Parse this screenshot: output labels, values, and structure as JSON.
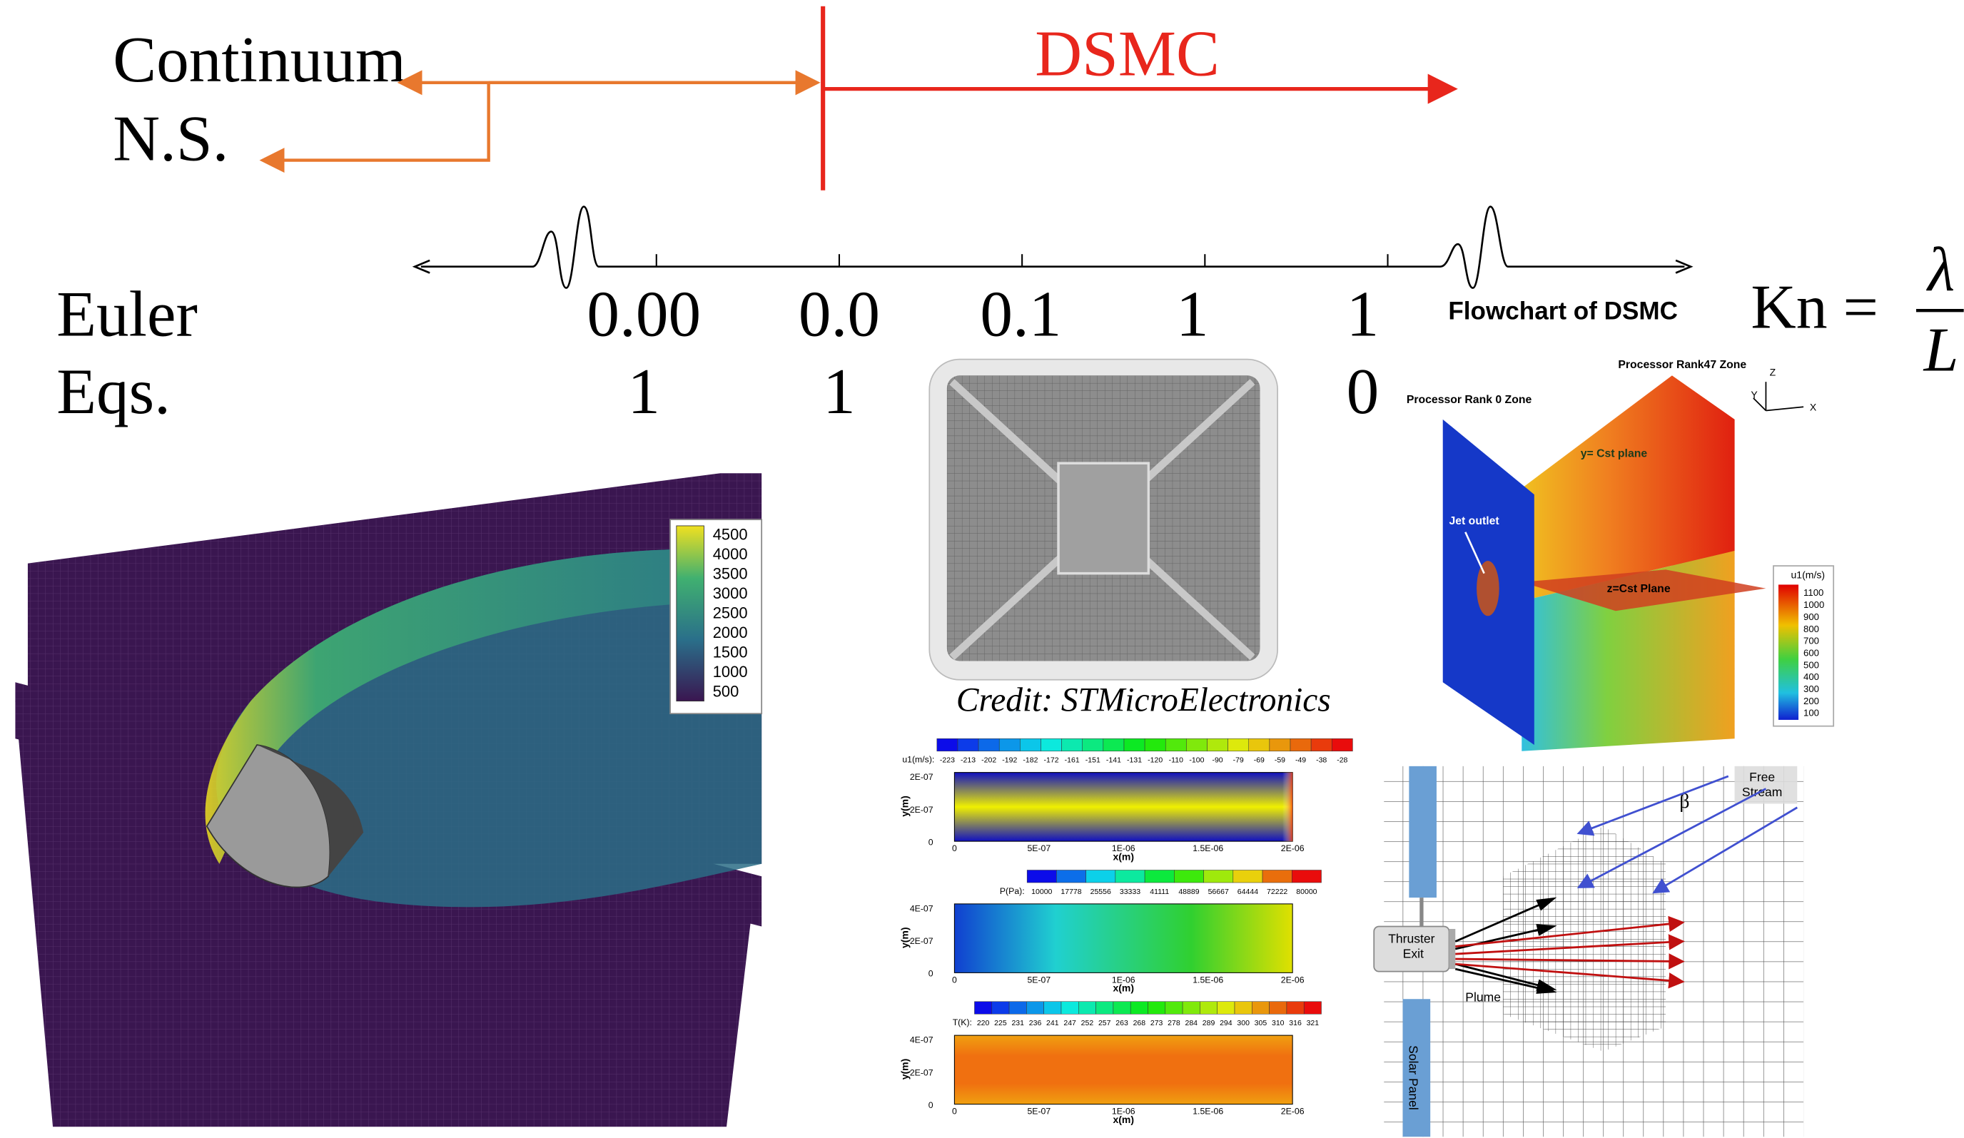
{
  "regime": {
    "continuum": "Continuum",
    "ns": "N.S.",
    "dsmc": "DSMC",
    "euler": "Euler",
    "eqs": "Eqs."
  },
  "kn_axis": {
    "ticks": [
      [
        "0.00",
        "1"
      ],
      [
        "0.0",
        "1"
      ],
      [
        "0.1"
      ],
      [
        "1"
      ],
      [
        "1",
        "0"
      ]
    ],
    "flowchart": "Flowchart of DSMC",
    "kn": "Kn =",
    "lambda": "λ",
    "L": "L"
  },
  "figures": {
    "reentry": {
      "colorbar": [
        "4500",
        "4000",
        "3500",
        "3000",
        "2500",
        "2000",
        "1500",
        "1000",
        "500"
      ]
    },
    "chip": {
      "credit": "Credit: STMicroElectronics"
    },
    "channel": {
      "panels": [
        {
          "var": "u1(m/s):",
          "levels": [
            "-223",
            "-213",
            "-202",
            "-192",
            "-182",
            "-172",
            "-161",
            "-151",
            "-141",
            "-131",
            "-120",
            "-110",
            "-100",
            "-90",
            "-79",
            "-69",
            "-59",
            "-49",
            "-38",
            "-28"
          ],
          "yticks": [
            "2E-07",
            "2E-07",
            "0"
          ]
        },
        {
          "var": "P(Pa):",
          "levels": [
            "10000",
            "17778",
            "25556",
            "33333",
            "41111",
            "48889",
            "56667",
            "64444",
            "72222",
            "80000"
          ],
          "yticks": [
            "4E-07",
            "2E-07",
            "0"
          ]
        },
        {
          "var": "T(K):",
          "levels": [
            "220",
            "225",
            "231",
            "236",
            "241",
            "247",
            "252",
            "257",
            "263",
            "268",
            "273",
            "278",
            "284",
            "289",
            "294",
            "300",
            "305",
            "310",
            "316",
            "321"
          ],
          "yticks": [
            "4E-07",
            "2E-07",
            "0"
          ]
        }
      ],
      "xticks": [
        "0",
        "5E-07",
        "1E-06",
        "1.5E-06",
        "2E-06"
      ],
      "xlabel": "x(m)",
      "ylabel": "y(m)"
    },
    "plume3d": {
      "rank0": "Processor Rank 0 Zone",
      "rank47": "Processor Rank47 Zone",
      "yplane": "y= Cst plane",
      "jet": "Jet outlet",
      "zplane": "z=Cst Plane",
      "cbar_title": "u1(m/s)",
      "colorbar": [
        "1100",
        "1000",
        "900",
        "800",
        "700",
        "600",
        "500",
        "400",
        "300",
        "200",
        "100"
      ],
      "axes": [
        "Z",
        "Y",
        "X"
      ]
    },
    "thruster": {
      "exit": "Thruster Exit",
      "plume": "Plume",
      "panel": "Solar Panel",
      "stream": "Free Stream",
      "beta": "β"
    }
  }
}
